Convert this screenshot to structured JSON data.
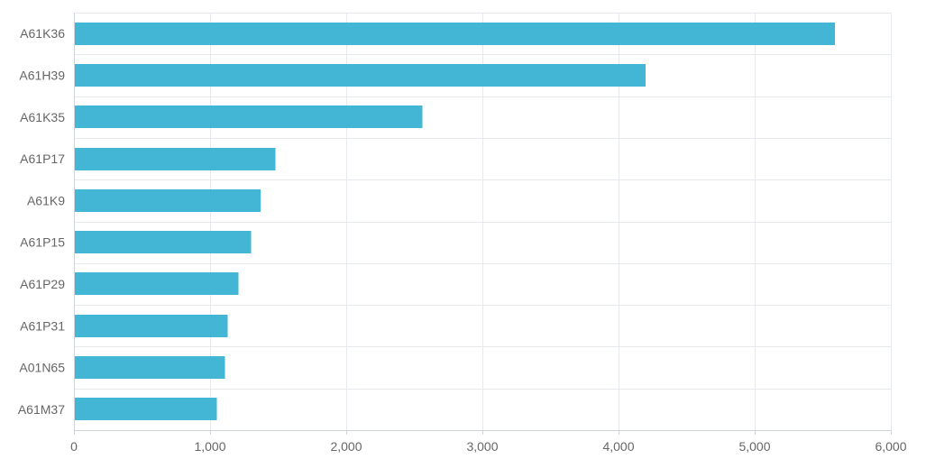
{
  "chart_data": {
    "type": "bar",
    "orientation": "horizontal",
    "categories": [
      "A61K36",
      "A61H39",
      "A61K35",
      "A61P17",
      "A61K9",
      "A61P15",
      "A61P29",
      "A61P31",
      "A01N65",
      "A61M37"
    ],
    "values": [
      5590,
      4200,
      2560,
      1480,
      1370,
      1300,
      1210,
      1130,
      1110,
      1050
    ],
    "title": "",
    "xlabel": "",
    "ylabel": "",
    "xlim": [
      0,
      6000
    ],
    "x_ticks": [
      0,
      1000,
      2000,
      3000,
      4000,
      5000,
      6000
    ],
    "x_tick_labels": [
      "0",
      "1,000",
      "2,000",
      "3,000",
      "4,000",
      "5,000",
      "6,000"
    ],
    "bar_color": "#44b6d5",
    "grid": true,
    "legend": "none"
  }
}
